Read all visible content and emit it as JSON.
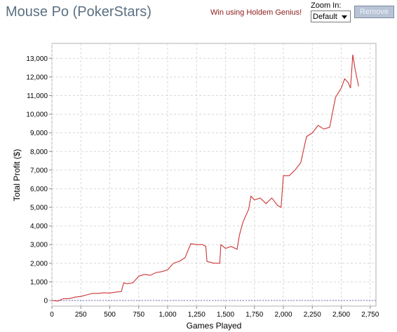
{
  "header": {
    "title": "Mouse Po (PokerStars)",
    "promo_link": "Win using Holdem Genius!",
    "zoom_label": "Zoom In:",
    "zoom_value": "Default",
    "remove_label": "Remove"
  },
  "colors": {
    "line": "#cc3333",
    "zero_line": "#6f6fc0",
    "grid": "#d7d7d7",
    "title": "#5b6f82"
  },
  "chart_data": {
    "type": "line",
    "title": "",
    "xlabel": "Games Played",
    "ylabel": "Total Profit ($)",
    "xlim": [
      0,
      2800
    ],
    "ylim": [
      -300,
      13800
    ],
    "x_ticks": [
      0,
      250,
      500,
      750,
      1000,
      1250,
      1500,
      1750,
      2000,
      2250,
      2500,
      2750
    ],
    "x_tick_labels": [
      "0",
      "250",
      "500",
      "750",
      "1,000",
      "1,250",
      "1,500",
      "1,750",
      "2,000",
      "2,250",
      "2,500",
      "2,750"
    ],
    "y_ticks": [
      0,
      1000,
      2000,
      3000,
      4000,
      5000,
      6000,
      7000,
      8000,
      9000,
      10000,
      11000,
      12000,
      13000
    ],
    "y_tick_labels": [
      "0",
      "1,000",
      "2,000",
      "3,000",
      "4,000",
      "5,000",
      "6,000",
      "7,000",
      "8,000",
      "9,000",
      "10,000",
      "11,000",
      "12,000",
      "13,000"
    ],
    "grid": true,
    "series": [
      {
        "x": [
          0,
          50,
          100,
          150,
          200,
          250,
          300,
          350,
          400,
          450,
          500,
          550,
          600,
          620,
          650,
          700,
          750,
          800,
          850,
          900,
          950,
          1000,
          1050,
          1100,
          1150,
          1200,
          1250,
          1300,
          1330,
          1340,
          1400,
          1450,
          1460,
          1500,
          1550,
          1600,
          1620,
          1650,
          1700,
          1720,
          1750,
          1800,
          1850,
          1900,
          1950,
          1980,
          2000,
          2050,
          2100,
          2150,
          2200,
          2250,
          2300,
          2350,
          2400,
          2450,
          2500,
          2530,
          2560,
          2580,
          2600,
          2620,
          2650
        ],
        "y": [
          0,
          -30,
          100,
          100,
          180,
          220,
          300,
          380,
          380,
          420,
          400,
          450,
          480,
          950,
          900,
          950,
          1300,
          1400,
          1350,
          1500,
          1550,
          1650,
          2000,
          2100,
          2300,
          3050,
          3000,
          3000,
          2900,
          2100,
          2000,
          2000,
          3000,
          2800,
          2900,
          2750,
          3500,
          4200,
          4900,
          5600,
          5400,
          5500,
          5200,
          5500,
          5100,
          5000,
          6700,
          6700,
          7000,
          7400,
          8800,
          9000,
          9400,
          9200,
          9300,
          10900,
          11400,
          11900,
          11700,
          11400,
          13200,
          12400,
          11500
        ]
      }
    ]
  }
}
